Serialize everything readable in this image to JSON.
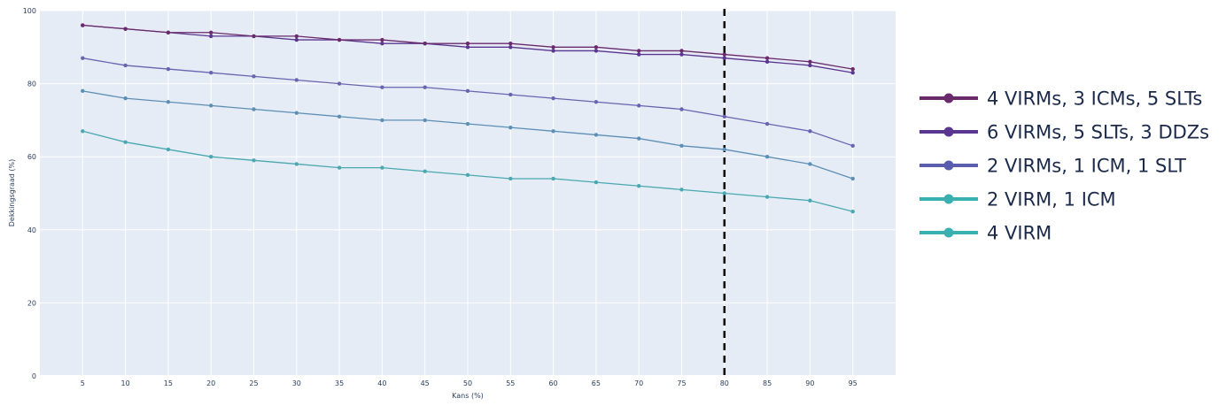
{
  "chart_data": {
    "type": "line",
    "xlabel": "Kans (%)",
    "ylabel": "Dekkingsgraad (%)",
    "x": [
      5,
      10,
      15,
      20,
      25,
      30,
      35,
      40,
      45,
      50,
      55,
      60,
      65,
      70,
      75,
      80,
      85,
      90,
      95
    ],
    "xlim": [
      0,
      100
    ],
    "ylim": [
      0,
      100
    ],
    "x_ticks": [
      5,
      10,
      15,
      20,
      25,
      30,
      35,
      40,
      45,
      50,
      55,
      60,
      65,
      70,
      75,
      80,
      85,
      90,
      95
    ],
    "y_ticks": [
      0,
      20,
      40,
      60,
      80,
      100
    ],
    "grid": true,
    "legend_position": "right",
    "background_color": "#e5ecf6",
    "vline": {
      "x": 80,
      "color": "#000000",
      "style": "dashed"
    },
    "series": [
      {
        "name": "4 VIRMs, 3 ICMs, 5 SLTs",
        "color": "#6b2a6b",
        "values": [
          96,
          95,
          94,
          94,
          93,
          93,
          92,
          92,
          91,
          91,
          91,
          90,
          90,
          89,
          89,
          88,
          87,
          86,
          84
        ]
      },
      {
        "name": "6 VIRMs, 5 SLTs, 3 DDZs",
        "color": "#5b3690",
        "values": [
          96,
          95,
          94,
          93,
          93,
          92,
          92,
          91,
          91,
          90,
          90,
          89,
          89,
          88,
          88,
          87,
          86,
          85,
          83
        ]
      },
      {
        "name": "2 VIRMs, 1 ICM, 1 SLT",
        "color": "#6a63b0",
        "values": [
          87,
          85,
          84,
          83,
          82,
          81,
          80,
          79,
          79,
          78,
          77,
          76,
          75,
          74,
          73,
          71,
          69,
          67,
          63
        ]
      },
      {
        "name": "2 VIRM, 1 ICM",
        "color": "#5d8fb5",
        "values": [
          78,
          76,
          75,
          74,
          73,
          72,
          71,
          70,
          70,
          69,
          68,
          67,
          66,
          65,
          63,
          62,
          60,
          58,
          54
        ]
      },
      {
        "name": "4 VIRM",
        "color": "#4aa8b0",
        "values": [
          67,
          64,
          62,
          60,
          59,
          58,
          57,
          57,
          56,
          55,
          54,
          54,
          53,
          52,
          51,
          50,
          49,
          48,
          45
        ]
      }
    ]
  },
  "legend": {
    "colors": [
      "#6b2a6b",
      "#5b3690",
      "#5a5cae",
      "#3ab0b0",
      "#3ab0b0"
    ]
  }
}
